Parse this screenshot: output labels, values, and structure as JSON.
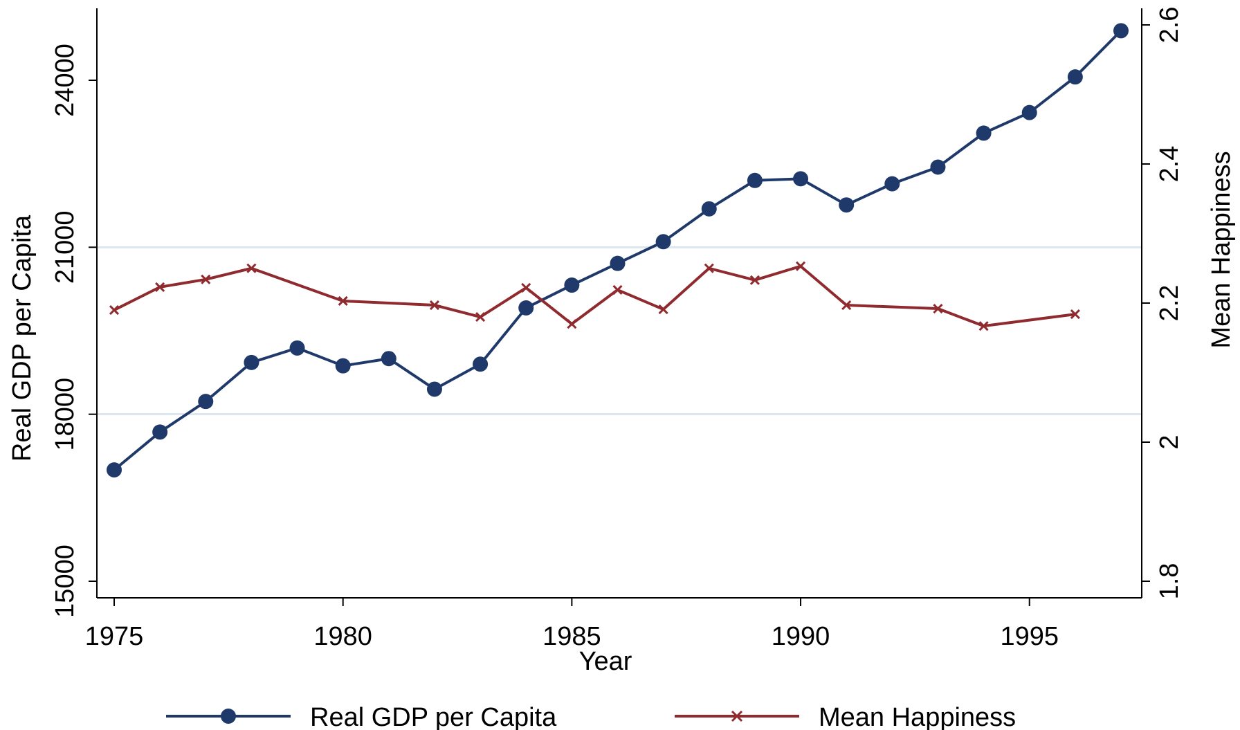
{
  "chart_data": {
    "type": "line",
    "xlabel": "Year",
    "ylabel_left": "Real GDP per Capita",
    "ylabel_right": "Mean Happiness",
    "x_ticks": [
      1975,
      1980,
      1985,
      1990,
      1995
    ],
    "y_left_ticks": [
      15000,
      18000,
      21000,
      24000
    ],
    "y_right_ticks": [
      1.8,
      2,
      2.2,
      2.4,
      2.6
    ],
    "y_left_range": [
      15000,
      25000
    ],
    "y_right_range": [
      1.8,
      2.6
    ],
    "x_range": [
      1975,
      1997
    ],
    "grid": "horizontal",
    "legend_position": "bottom",
    "series": [
      {
        "name": "Real GDP per Capita",
        "axis": "left",
        "color": "#1f3a6a",
        "marker": "circle",
        "x": [
          1975,
          1976,
          1977,
          1978,
          1979,
          1980,
          1981,
          1982,
          1983,
          1984,
          1985,
          1986,
          1987,
          1988,
          1989,
          1990,
          1991,
          1992,
          1993,
          1994,
          1995,
          1996,
          1997
        ],
        "values": [
          17000,
          17680,
          18230,
          18930,
          19190,
          18870,
          19000,
          18450,
          18900,
          19910,
          20320,
          20710,
          21100,
          21690,
          22200,
          22230,
          21760,
          22140,
          22440,
          23050,
          23420,
          24060,
          24890
        ]
      },
      {
        "name": "Mean Happiness",
        "axis": "right",
        "color": "#8f2a2e",
        "marker": "x",
        "x": [
          1975,
          1976,
          1977,
          1978,
          1980,
          1982,
          1983,
          1984,
          1985,
          1986,
          1987,
          1988,
          1989,
          1990,
          1991,
          1993,
          1994,
          1996
        ],
        "values": [
          2.19,
          2.223,
          2.234,
          2.25,
          2.203,
          2.197,
          2.18,
          2.222,
          2.17,
          2.219,
          2.191,
          2.25,
          2.233,
          2.253,
          2.197,
          2.192,
          2.167,
          2.184
        ]
      }
    ]
  }
}
